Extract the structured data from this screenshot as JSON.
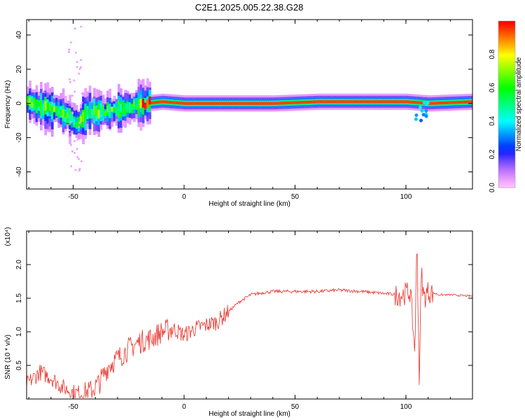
{
  "title": "C2E1.2025.005.22.38.G28",
  "chart_data": [
    {
      "type": "heatmap",
      "xlabel": "Height of straight line (km)",
      "ylabel": "Frequency (Hz)",
      "xlim": [
        -71,
        130
      ],
      "ylim": [
        -50,
        49
      ],
      "xticks": [
        -50,
        0,
        50,
        100
      ],
      "yticks": [
        -40,
        -20,
        0,
        20,
        40
      ],
      "colorbar": {
        "label": "Normalized spectral amplitude",
        "range": [
          0,
          1
        ],
        "ticks": [
          "0.0",
          "0.2",
          "0.4",
          "0.6",
          "0.8"
        ]
      },
      "ridge": [
        {
          "x": -70,
          "f": 0
        },
        {
          "x": -65,
          "f": -2
        },
        {
          "x": -58,
          "f": -4
        },
        {
          "x": -52,
          "f": -8
        },
        {
          "x": -48,
          "f": -12
        },
        {
          "x": -44,
          "f": -5
        },
        {
          "x": -38,
          "f": -5
        },
        {
          "x": -30,
          "f": -4
        },
        {
          "x": -25,
          "f": -2
        },
        {
          "x": -18,
          "f": 0
        },
        {
          "x": -10,
          "f": 1
        },
        {
          "x": 0,
          "f": 0
        },
        {
          "x": 10,
          "f": 0
        },
        {
          "x": 20,
          "f": 0
        },
        {
          "x": 40,
          "f": 0
        },
        {
          "x": 60,
          "f": 1
        },
        {
          "x": 80,
          "f": 1
        },
        {
          "x": 100,
          "f": 1
        },
        {
          "x": 110,
          "f": 0
        },
        {
          "x": 130,
          "f": 1
        }
      ]
    },
    {
      "type": "line",
      "xlabel": "Height of straight line (km)",
      "ylabel": "SNR (10 * v/v)",
      "multiplier": "(x10⁴)",
      "xlim": [
        -71,
        130
      ],
      "ylim": [
        0,
        2.5
      ],
      "xticks": [
        -50,
        0,
        50,
        100
      ],
      "yticks": [
        "0.5",
        "1.0",
        "1.5",
        "2.0"
      ],
      "series": [
        {
          "color": "#e8322a",
          "x": [
            -71,
            -65,
            -60,
            -55,
            -50,
            -45,
            -42,
            -38,
            -34,
            -30,
            -25,
            -20,
            -15,
            -10,
            -5,
            0,
            5,
            10,
            15,
            20,
            25,
            30,
            35,
            40,
            50,
            60,
            70,
            80,
            90,
            98,
            102,
            104,
            105,
            106,
            107,
            108,
            110,
            115,
            120,
            125,
            130
          ],
          "y": [
            0.22,
            0.4,
            0.32,
            0.18,
            0.1,
            0.08,
            0.12,
            0.25,
            0.5,
            0.6,
            0.75,
            0.85,
            0.9,
            1.0,
            1.05,
            0.95,
            1.05,
            1.1,
            1.15,
            1.3,
            1.45,
            1.55,
            1.58,
            1.6,
            1.6,
            1.6,
            1.62,
            1.6,
            1.57,
            1.55,
            1.6,
            0.7,
            2.4,
            0.3,
            1.9,
            1.5,
            1.6,
            1.55,
            1.55,
            1.54,
            1.53
          ]
        }
      ]
    }
  ]
}
